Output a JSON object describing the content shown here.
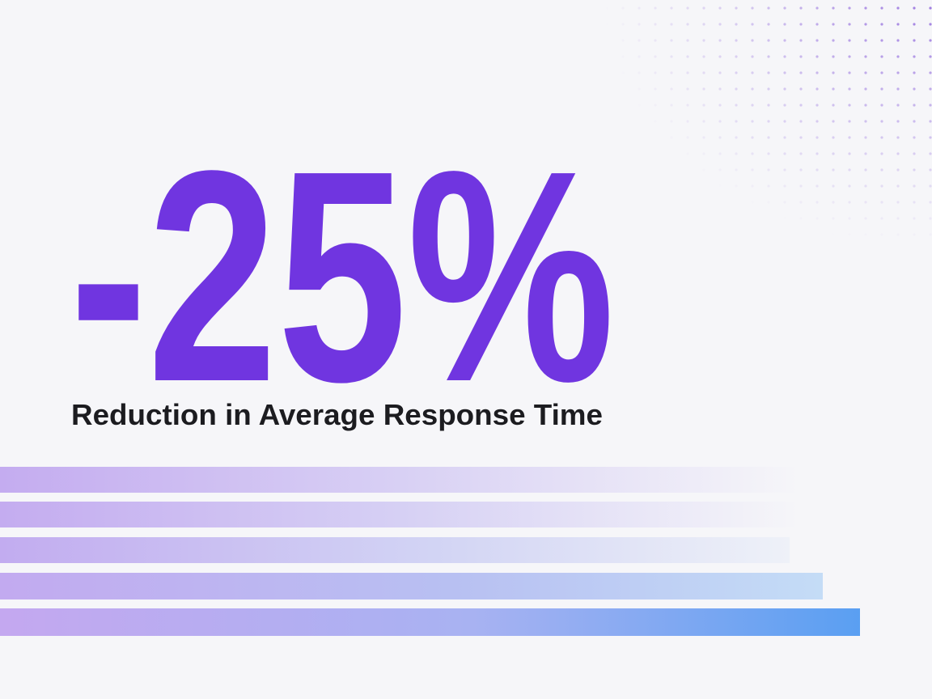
{
  "headline": {
    "stat": "-25%",
    "caption": "Reduction in Average Response Time"
  }
}
